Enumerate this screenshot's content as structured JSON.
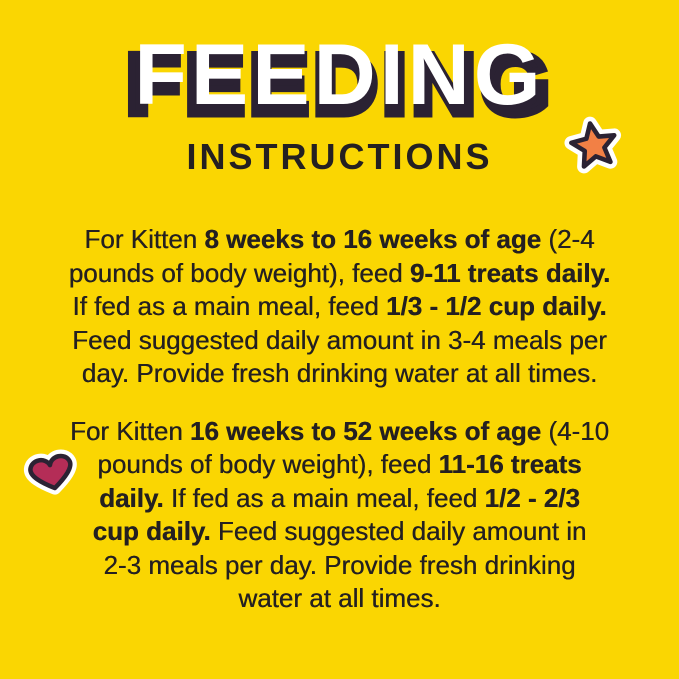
{
  "header": {
    "title": "FEEDING",
    "subtitle": "INSTRUCTIONS"
  },
  "colors": {
    "bg": "#FAD602",
    "ink": "#242021",
    "star": "#F28045",
    "heart": "#B42D57",
    "outline": "#2B2233",
    "sticker-border": "#FFFFFF",
    "title-fg": "#FFFFFF"
  },
  "icons": {
    "star": "orange-star-sticker",
    "heart": "crimson-heart-sticker"
  },
  "instructions": {
    "paragraphs": [
      {
        "lines": [
          [
            {
              "t": "For Kitten ",
              "b": false
            },
            {
              "t": "8 weeks to 16 weeks of age",
              "b": true
            },
            {
              "t": " (2-4",
              "b": false
            }
          ],
          [
            {
              "t": "pounds of body weight), feed ",
              "b": false
            },
            {
              "t": "9-11 treats daily.",
              "b": true
            }
          ],
          [
            {
              "t": "If fed as a main meal, feed ",
              "b": false
            },
            {
              "t": "1/3 - 1/2 cup daily.",
              "b": true
            }
          ],
          [
            {
              "t": "Feed suggested daily amount in 3-4 meals per",
              "b": false
            }
          ],
          [
            {
              "t": "day. Provide fresh drinking water at all times.",
              "b": false
            }
          ]
        ]
      },
      {
        "lines": [
          [
            {
              "t": "For Kitten ",
              "b": false
            },
            {
              "t": "16 weeks to 52 weeks of age",
              "b": true
            },
            {
              "t": " (4-10",
              "b": false
            }
          ],
          [
            {
              "t": "pounds of body weight), feed ",
              "b": false
            },
            {
              "t": "11-16 treats",
              "b": true
            }
          ],
          [
            {
              "t": "daily.",
              "b": true
            },
            {
              "t": " If fed as a main meal, feed ",
              "b": false
            },
            {
              "t": "1/2 - 2/3",
              "b": true
            }
          ],
          [
            {
              "t": "cup daily.",
              "b": true
            },
            {
              "t": " Feed suggested daily amount in",
              "b": false
            }
          ],
          [
            {
              "t": "2-3 meals per day. Provide fresh drinking",
              "b": false
            }
          ],
          [
            {
              "t": "water at all times.",
              "b": false
            }
          ]
        ]
      }
    ]
  }
}
